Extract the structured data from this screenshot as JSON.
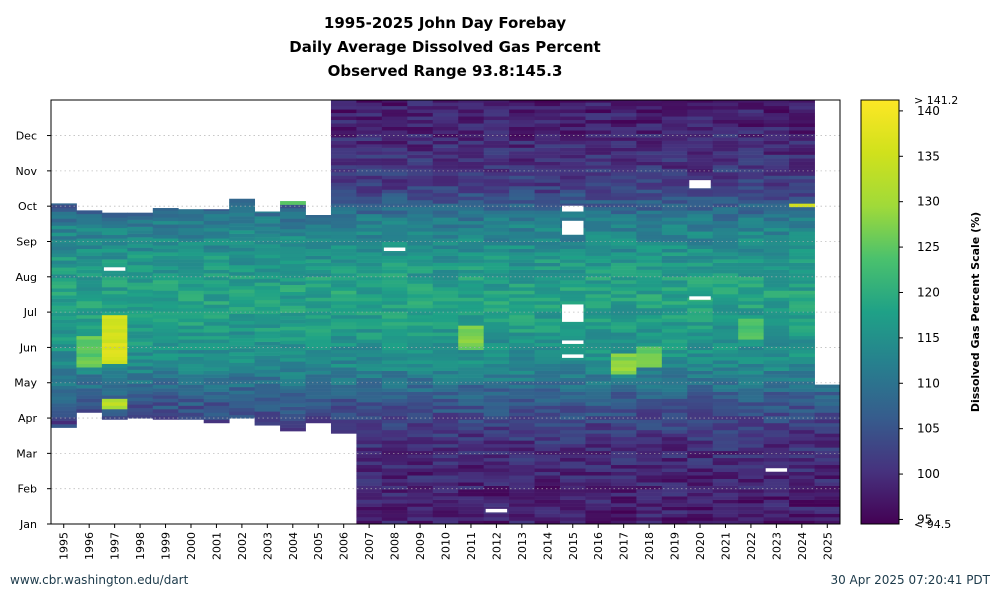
{
  "chart_data": {
    "type": "heatmap",
    "title": [
      "1995-2025 John Day Forebay",
      "Daily Average Dissolved Gas Percent",
      "Observed Range 93.8:145.3"
    ],
    "xlabel": "",
    "ylabel": "",
    "x_categories": [
      "1995",
      "1996",
      "1997",
      "1998",
      "1999",
      "2000",
      "2001",
      "2002",
      "2003",
      "2004",
      "2005",
      "2006",
      "2007",
      "2008",
      "2009",
      "2010",
      "2011",
      "2012",
      "2013",
      "2014",
      "2015",
      "2016",
      "2017",
      "2018",
      "2019",
      "2020",
      "2021",
      "2022",
      "2023",
      "2024",
      "2025"
    ],
    "y_ticks": [
      "Jan",
      "Feb",
      "Mar",
      "Apr",
      "May",
      "Jun",
      "Jul",
      "Aug",
      "Sep",
      "Oct",
      "Nov",
      "Dec"
    ],
    "colorbar": {
      "label": "Dissolved Gas Percent Scale (%)",
      "min": 94.5,
      "max": 141.2,
      "min_label": "< 94.5",
      "max_label": "> 141.2",
      "ticks": [
        95,
        100,
        105,
        110,
        115,
        120,
        125,
        130,
        135,
        140
      ],
      "colormap": "viridis"
    },
    "coverage_day_of_year": [
      {
        "year": "1995",
        "start": 84,
        "end": 276
      },
      {
        "year": "1996",
        "start": 97,
        "end": 270
      },
      {
        "year": "1997",
        "start": 91,
        "end": 268
      },
      {
        "year": "1998",
        "start": 92,
        "end": 268
      },
      {
        "year": "1999",
        "start": 91,
        "end": 272
      },
      {
        "year": "2000",
        "start": 91,
        "end": 271
      },
      {
        "year": "2001",
        "start": 88,
        "end": 271
      },
      {
        "year": "2002",
        "start": 92,
        "end": 280
      },
      {
        "year": "2003",
        "start": 86,
        "end": 269
      },
      {
        "year": "2004",
        "start": 81,
        "end": 278
      },
      {
        "year": "2005",
        "start": 88,
        "end": 266
      },
      {
        "year": "2006",
        "start": 79,
        "end": 365
      },
      {
        "year": "2007",
        "start": 1,
        "end": 365
      },
      {
        "year": "2008",
        "start": 1,
        "end": 365
      },
      {
        "year": "2009",
        "start": 1,
        "end": 365
      },
      {
        "year": "2010",
        "start": 1,
        "end": 365
      },
      {
        "year": "2011",
        "start": 1,
        "end": 365
      },
      {
        "year": "2012",
        "start": 1,
        "end": 365
      },
      {
        "year": "2013",
        "start": 1,
        "end": 365
      },
      {
        "year": "2014",
        "start": 1,
        "end": 365
      },
      {
        "year": "2015",
        "start": 1,
        "end": 365
      },
      {
        "year": "2016",
        "start": 1,
        "end": 365
      },
      {
        "year": "2017",
        "start": 1,
        "end": 365
      },
      {
        "year": "2018",
        "start": 1,
        "end": 365
      },
      {
        "year": "2019",
        "start": 1,
        "end": 365
      },
      {
        "year": "2020",
        "start": 1,
        "end": 365
      },
      {
        "year": "2021",
        "start": 1,
        "end": 365
      },
      {
        "year": "2022",
        "start": 1,
        "end": 365
      },
      {
        "year": "2023",
        "start": 1,
        "end": 365
      },
      {
        "year": "2024",
        "start": 1,
        "end": 365
      },
      {
        "year": "2025",
        "start": 1,
        "end": 120
      }
    ],
    "seasonal_profile_percent": [
      {
        "month": "Jan",
        "value": 98
      },
      {
        "month": "Feb",
        "value": 99
      },
      {
        "month": "Mar",
        "value": 101
      },
      {
        "month": "Apr",
        "value": 106
      },
      {
        "month": "May",
        "value": 114
      },
      {
        "month": "Jun",
        "value": 117
      },
      {
        "month": "Jul",
        "value": 118
      },
      {
        "month": "Aug",
        "value": 116
      },
      {
        "month": "Sep",
        "value": 112
      },
      {
        "month": "Oct",
        "value": 102
      },
      {
        "month": "Nov",
        "value": 100
      },
      {
        "month": "Dec",
        "value": 98
      }
    ],
    "high_periods": [
      {
        "year": "1996",
        "start": 135,
        "end": 160,
        "value": 127
      },
      {
        "year": "1997",
        "start": 138,
        "end": 180,
        "value": 138
      },
      {
        "year": "1997",
        "start": 100,
        "end": 107,
        "value": 134
      },
      {
        "year": "2011",
        "start": 150,
        "end": 170,
        "value": 129
      },
      {
        "year": "2017",
        "start": 130,
        "end": 145,
        "value": 130
      },
      {
        "year": "2018",
        "start": 136,
        "end": 152,
        "value": 128
      },
      {
        "year": "2022",
        "start": 160,
        "end": 175,
        "value": 126
      },
      {
        "year": "2004",
        "start": 275,
        "end": 278,
        "value": 128
      },
      {
        "year": "2024",
        "start": 273,
        "end": 275,
        "value": 138
      }
    ],
    "missing_periods": [
      {
        "year": "2015",
        "start": 175,
        "end": 189
      },
      {
        "year": "2015",
        "start": 250,
        "end": 261
      },
      {
        "year": "2015",
        "start": 270,
        "end": 274
      },
      {
        "year": "2015",
        "start": 144,
        "end": 146
      },
      {
        "year": "2015",
        "start": 156,
        "end": 158
      },
      {
        "year": "2020",
        "start": 194,
        "end": 196
      },
      {
        "year": "2020",
        "start": 290,
        "end": 296
      },
      {
        "year": "2008",
        "start": 236,
        "end": 238
      },
      {
        "year": "2012",
        "start": 11,
        "end": 13
      },
      {
        "year": "2023",
        "start": 46,
        "end": 48
      },
      {
        "year": "1997",
        "start": 219,
        "end": 221
      }
    ]
  },
  "footer": {
    "left": "www.cbr.washington.edu/dart",
    "right": "30 Apr 2025 07:20:41 PDT"
  }
}
